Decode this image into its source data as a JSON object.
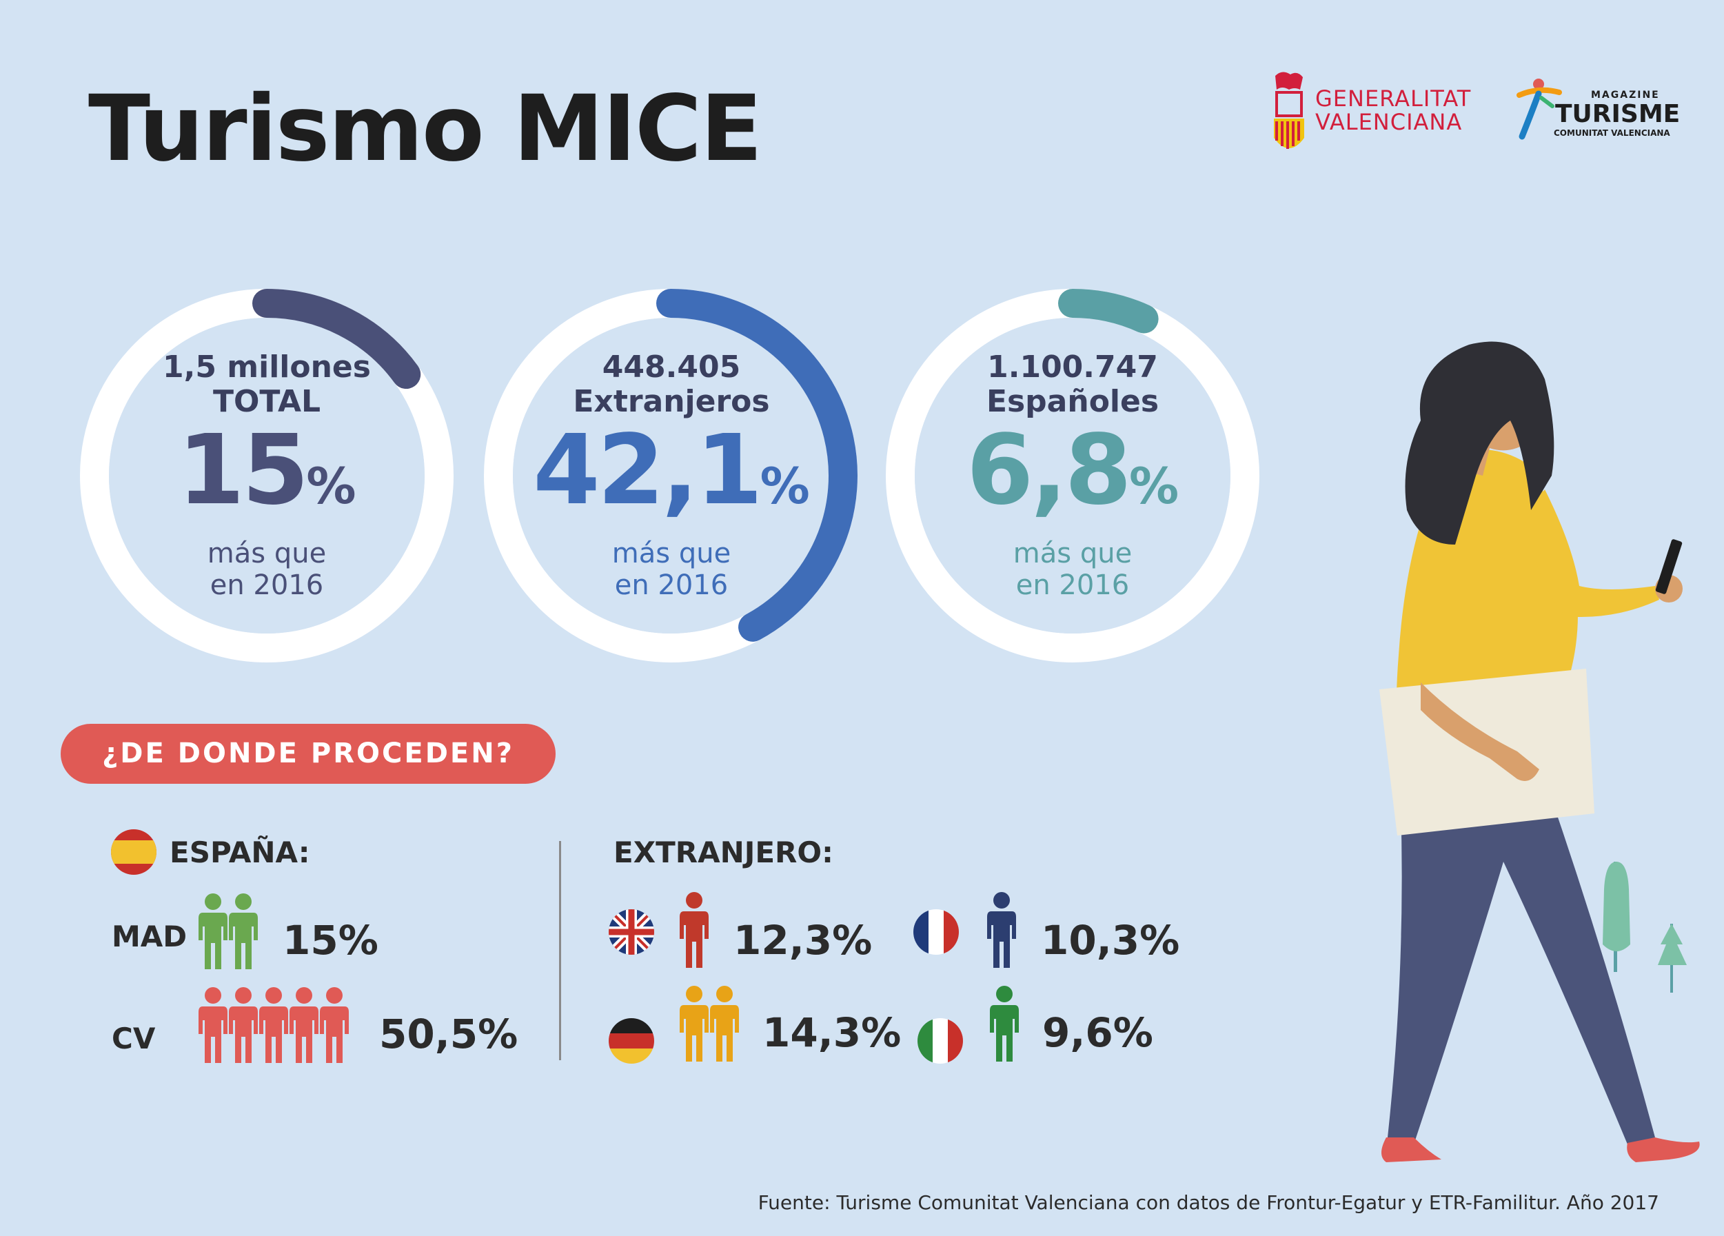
{
  "title": "Turismo MICE",
  "logos": {
    "generalitat": [
      "GENERALITAT",
      "VALENCIANA"
    ],
    "turisme": {
      "top": "MAGAZINE",
      "main": "TURISME",
      "sub": "COMUNITAT VALENCIANA"
    }
  },
  "rings": [
    {
      "head1": "1,5 millones",
      "head2": "TOTAL",
      "pct": "15",
      "pct_sign": "%",
      "sub1": "más que",
      "sub2": "en 2016",
      "progress": 0.15,
      "color": "#4a5078"
    },
    {
      "head1": "448.405",
      "head2": "Extranjeros",
      "pct": "42,1",
      "pct_sign": "%",
      "sub1": "más que",
      "sub2": "en 2016",
      "progress": 0.421,
      "color": "#3f6db8"
    },
    {
      "head1": "1.100.747",
      "head2": "Españoles",
      "pct": "6,8",
      "pct_sign": "%",
      "sub1": "más que",
      "sub2": "en 2016",
      "progress": 0.068,
      "color": "#5aa0a5"
    }
  ],
  "section_pill": "¿DE DONDE PROCEDEN?",
  "spain": {
    "label": "ESPAÑA:",
    "rows": [
      {
        "label": "MAD",
        "people": 2,
        "color": "#6aa84f",
        "pct": "15%"
      },
      {
        "label": "CV",
        "people": 5,
        "color": "#e05a55",
        "pct": "50,5%"
      }
    ]
  },
  "foreign": {
    "label": "EXTRANJERO:",
    "items": [
      {
        "country": "uk-flag",
        "people": 1,
        "color": "#c0392b",
        "pct": "12,3%"
      },
      {
        "country": "france-flag",
        "people": 1,
        "color": "#2c3e70",
        "pct": "10,3%"
      },
      {
        "country": "germany-flag",
        "people": 2,
        "color": "#e8a317",
        "pct": "14,3%"
      },
      {
        "country": "italy-flag",
        "people": 1,
        "color": "#2e8b3e",
        "pct": "9,6%"
      }
    ]
  },
  "source": "Fuente: Turisme Comunitat Valenciana con datos de Frontur-Egatur y ETR-Familitur. Año 2017"
}
